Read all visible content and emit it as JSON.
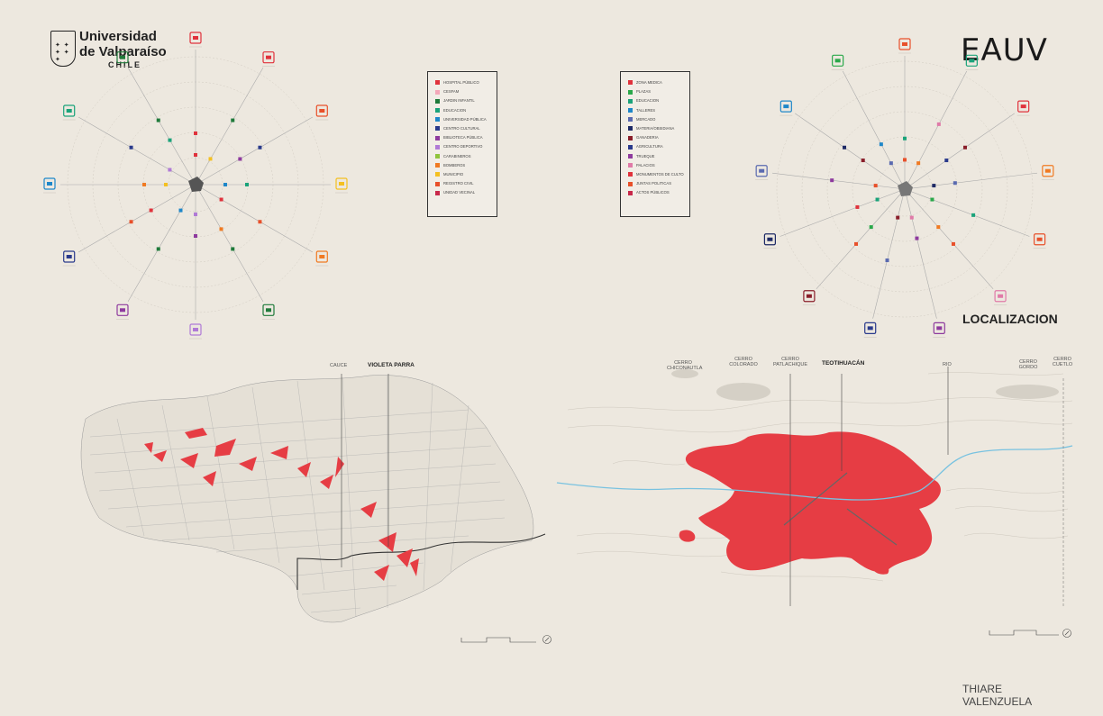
{
  "logo_left": {
    "line1": "Universidad",
    "line2": "de Valparaíso",
    "line3": "CHILE"
  },
  "logo_right": {
    "text": "EAUV"
  },
  "legend_left": {
    "items": [
      {
        "label": "HOSPITAL PÚBLICO",
        "color": "#e0323c"
      },
      {
        "label": "CESFAM",
        "color": "#f4a7b9"
      },
      {
        "label": "JARDIN INFANTIL",
        "color": "#1f7a3a"
      },
      {
        "label": "EDUCACION",
        "color": "#1aa37a"
      },
      {
        "label": "UNIVERSIDAD PÚBLICA",
        "color": "#1e87c9"
      },
      {
        "label": "CENTRO CULTURAL",
        "color": "#2a3a8c"
      },
      {
        "label": "BIBLIOTECA PÚBLICA",
        "color": "#8e3a9e"
      },
      {
        "label": "CENTRO DEPORTIVO",
        "color": "#b07ad6"
      },
      {
        "label": "CARABINEROS",
        "color": "#8fc43c"
      },
      {
        "label": "BOMBEROS",
        "color": "#f07a22"
      },
      {
        "label": "MUNICIPIO",
        "color": "#f4c020"
      },
      {
        "label": "REGISTRO CIVIL",
        "color": "#e8502a"
      },
      {
        "label": "UNIDAD VECINAL",
        "color": "#c8284a"
      }
    ]
  },
  "legend_right": {
    "items": [
      {
        "label": "ZONA MEDICA",
        "color": "#e0323c"
      },
      {
        "label": "PLAZAS",
        "color": "#2aa84a"
      },
      {
        "label": "EDUCACION",
        "color": "#1aa37a"
      },
      {
        "label": "TALLERES",
        "color": "#1e87c9"
      },
      {
        "label": "MERCADO",
        "color": "#5a6ab0"
      },
      {
        "label": "MATERIA/OBSIDIANA",
        "color": "#1e2a66"
      },
      {
        "label": "GANADERIA",
        "color": "#8a1e2a"
      },
      {
        "label": "AGRICULTURA",
        "color": "#2a3a8c"
      },
      {
        "label": "TRUEQUE",
        "color": "#8e3a9e"
      },
      {
        "label": "PALACIOS",
        "color": "#e07aa8"
      },
      {
        "label": "MONUMENTOS DE CULTO",
        "color": "#e0323c"
      },
      {
        "label": "JUNTAS POLITICAS",
        "color": "#e8502a"
      },
      {
        "label": "ACTOS PÚBLICOS",
        "color": "#c8284a"
      }
    ]
  },
  "map_left": {
    "label_cauce": "CAUCE",
    "label_title": "VIOLETA PARRA"
  },
  "map_right": {
    "cerro1": "CERRO CHICONAUTLA",
    "cerro2": "CERRO COLORADO",
    "cerro3": "CERRO PATLACHIQUE",
    "title": "TEOTIHUACÁN",
    "rio": "RIO",
    "cerro4": "CERRO GORDO",
    "cerro5": "CERRO CUETLO"
  },
  "section_title": "LOCALIZACION",
  "author": {
    "first": "THIARE",
    "last": "VALENZUELA"
  },
  "icon_colors": {
    "left": [
      "#e0323c",
      "#e0323c",
      "#e8502a",
      "#f4c020",
      "#f07a22",
      "#1f7a3a",
      "#b07ad6",
      "#8e3a9e",
      "#2a3a8c",
      "#1e87c9",
      "#1aa37a",
      "#1f7a3a"
    ],
    "right": [
      "#e8502a",
      "#1aa37a",
      "#e0323c",
      "#f07a22",
      "#e8502a",
      "#e07aa8",
      "#8e3a9e",
      "#2a3a8c",
      "#8a1e2a",
      "#1e2a66",
      "#5a6ab0",
      "#1e87c9",
      "#2aa84a"
    ]
  }
}
